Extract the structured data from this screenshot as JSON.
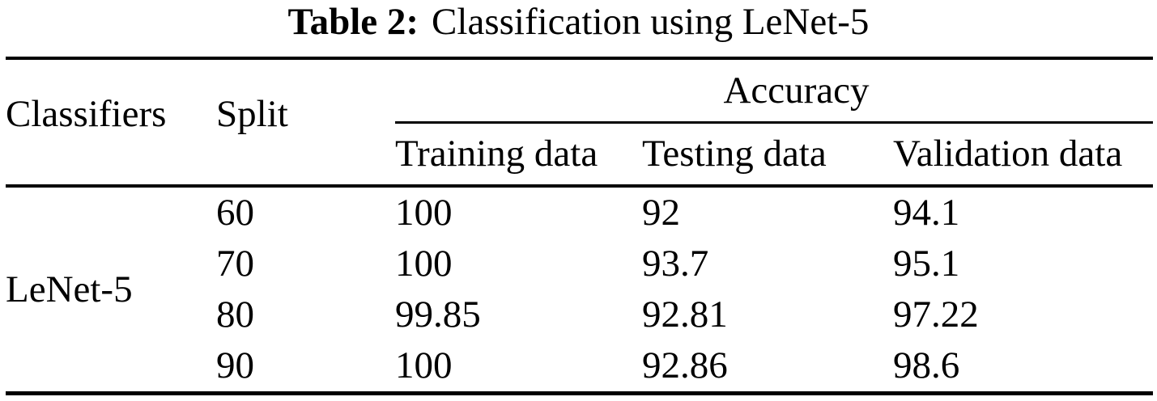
{
  "page": {
    "background": "#ffffff",
    "text_color": "#000000"
  },
  "caption": {
    "label": "Table 2:",
    "text": "Classification using LeNet-5"
  },
  "table": {
    "header": {
      "classifiers": "Classifiers",
      "split": "Split",
      "accuracy_group": "Accuracy",
      "subcolumns": [
        "Training data",
        "Testing data",
        "Validation data"
      ]
    },
    "classifier_name": "LeNet-5",
    "rows": [
      {
        "split": "60",
        "training": "100",
        "testing": "92",
        "validation": "94.1"
      },
      {
        "split": "70",
        "training": "100",
        "testing": "93.7",
        "validation": "95.1"
      },
      {
        "split": "80",
        "training": "99.85",
        "testing": "92.81",
        "validation": "97.22"
      },
      {
        "split": "90",
        "training": "100",
        "testing": "92.86",
        "validation": "98.6"
      }
    ]
  }
}
